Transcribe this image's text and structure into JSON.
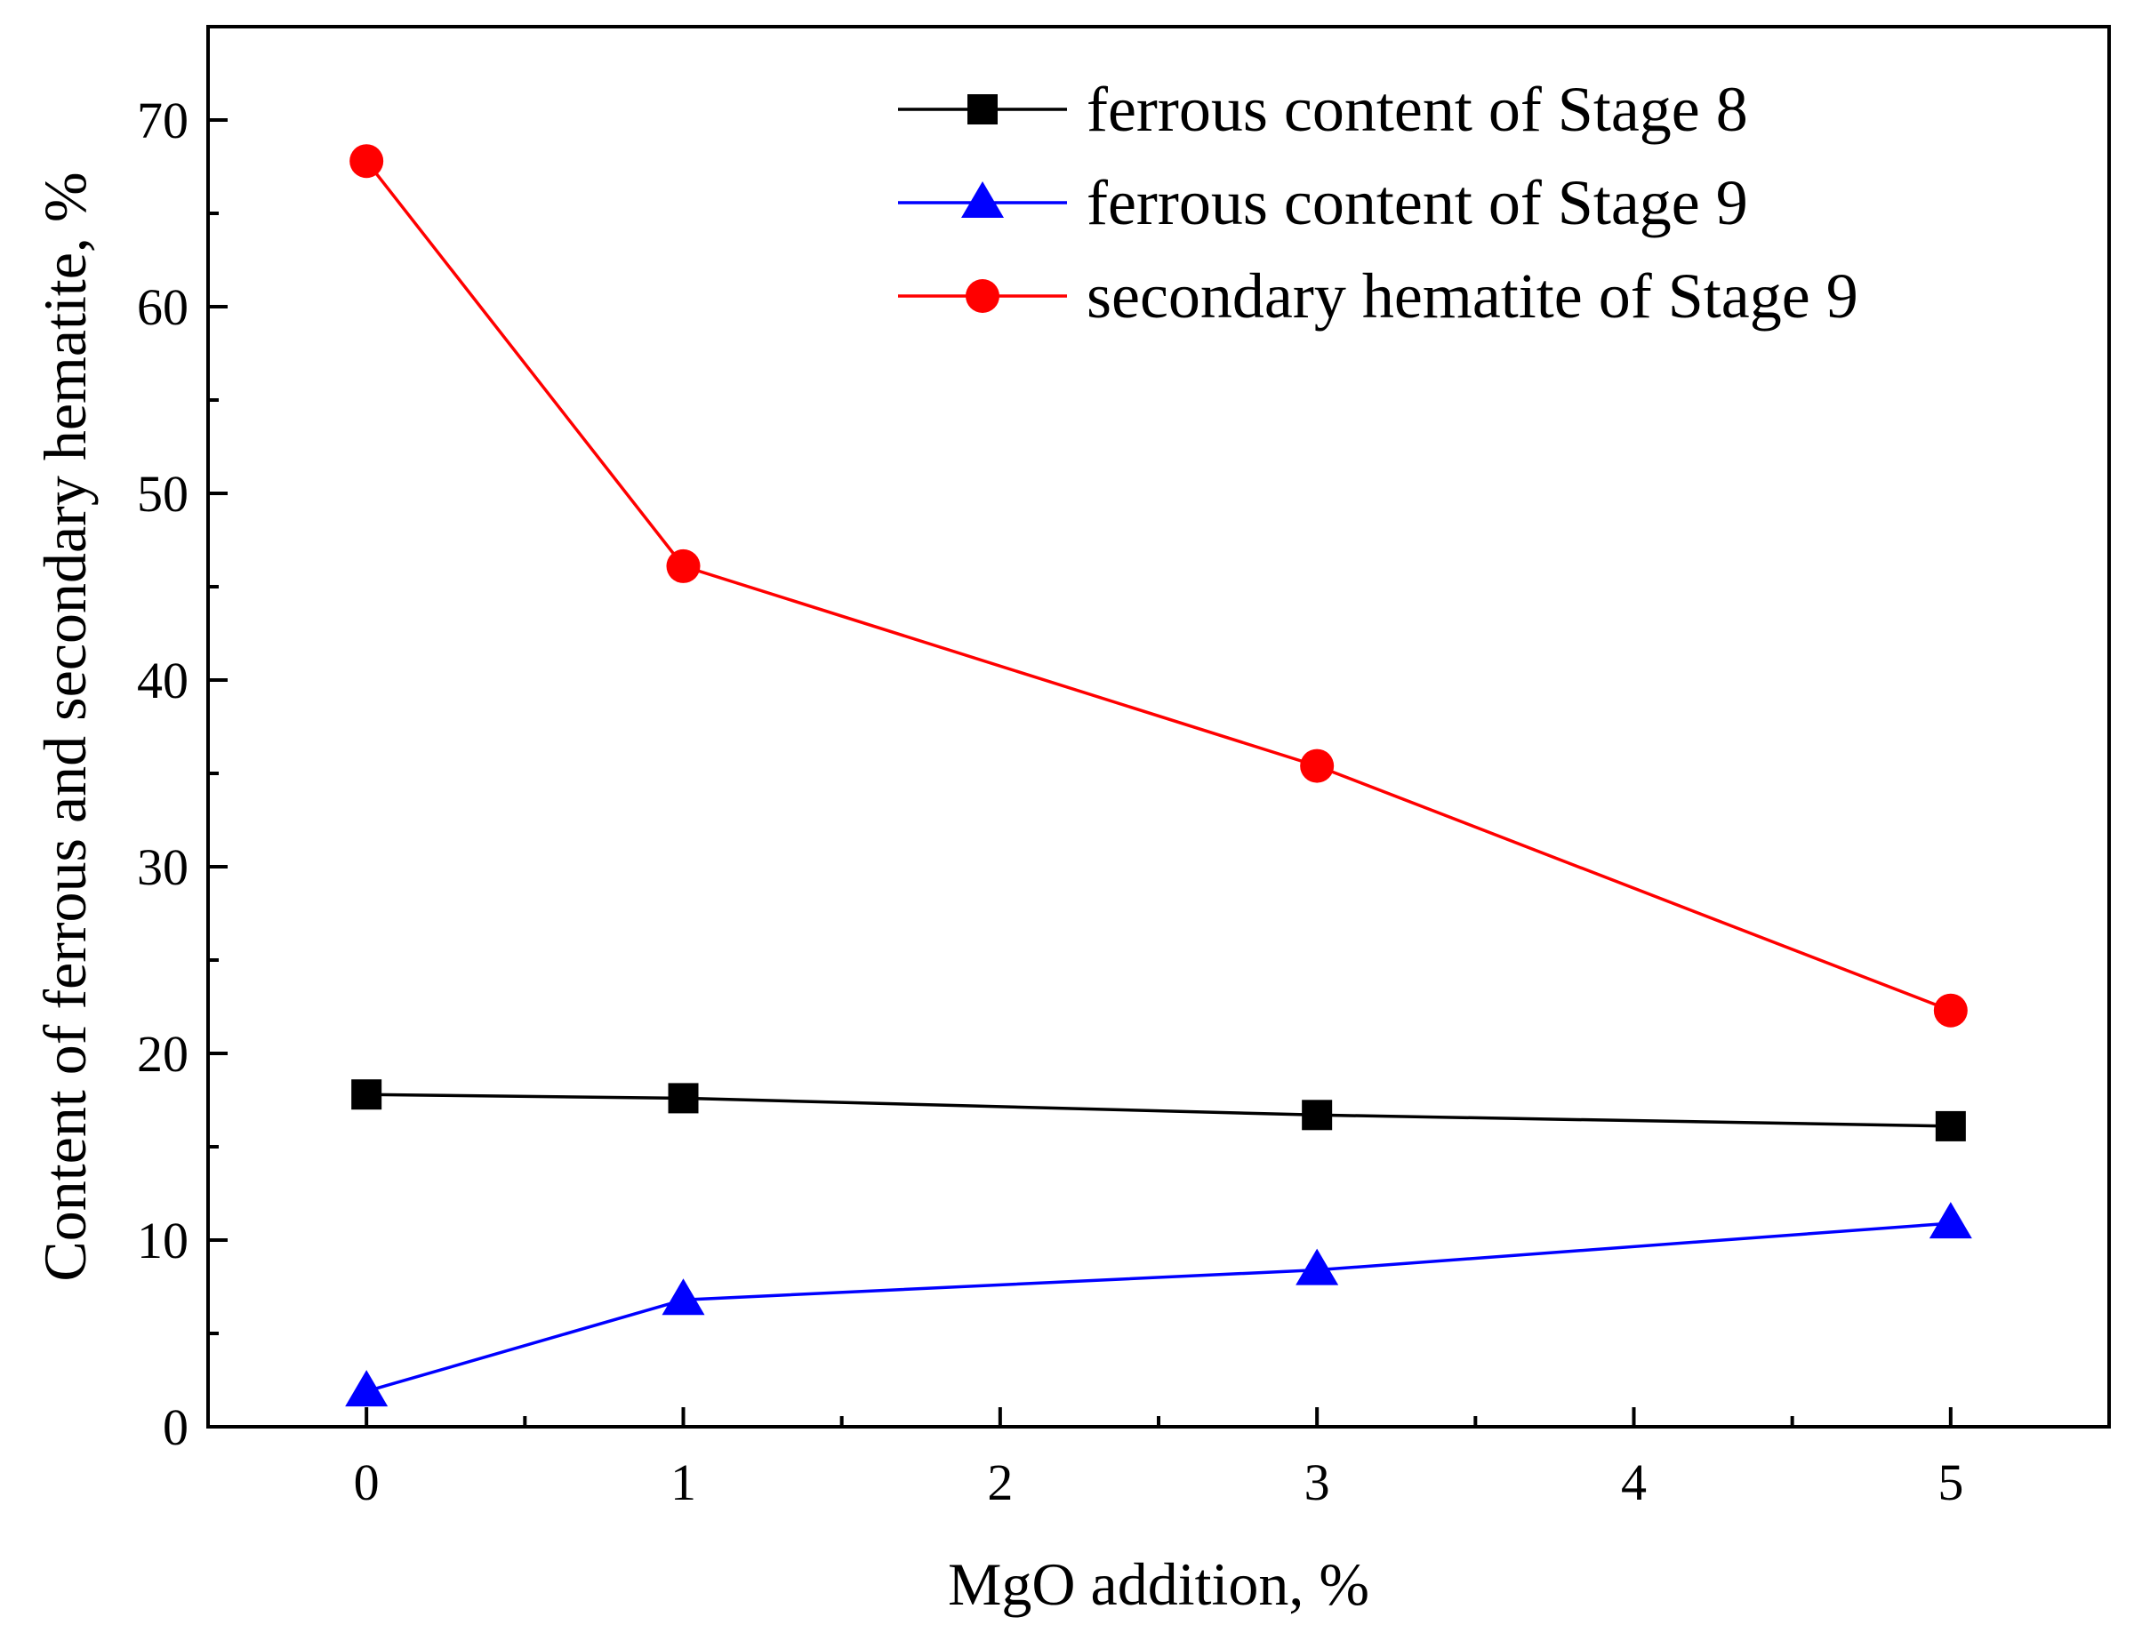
{
  "chart_data": {
    "type": "line",
    "title": "",
    "xlabel": "MgO addition, %",
    "ylabel": "Content of ferrous and secondary hematite, %",
    "xlim": [
      -0.5,
      5.5
    ],
    "ylim": [
      0,
      75
    ],
    "xticks": [
      0,
      1,
      2,
      3,
      4,
      5
    ],
    "yticks": [
      0,
      10,
      20,
      30,
      40,
      50,
      60,
      70
    ],
    "x_minor_ticks": [
      0.5,
      1.5,
      2.5,
      3.5,
      4.5
    ],
    "y_minor_ticks": [
      5,
      15,
      25,
      35,
      45,
      55,
      65
    ],
    "grid": false,
    "legend_position": "top-right",
    "series": [
      {
        "name": "ferrous content of Stage 8",
        "color": "#000000",
        "marker": "square",
        "x": [
          0,
          1,
          3,
          5
        ],
        "values": [
          17.8,
          17.6,
          16.7,
          16.1
        ]
      },
      {
        "name": "ferrous content of Stage 9",
        "color": "#0000ff",
        "marker": "triangle",
        "x": [
          0,
          1,
          3,
          5
        ],
        "values": [
          1.9,
          6.8,
          8.4,
          10.9
        ]
      },
      {
        "name": "secondary hematite of Stage 9",
        "color": "#ff0000",
        "marker": "circle",
        "x": [
          0,
          1,
          3,
          5
        ],
        "values": [
          67.8,
          46.1,
          35.4,
          22.3
        ]
      }
    ]
  }
}
